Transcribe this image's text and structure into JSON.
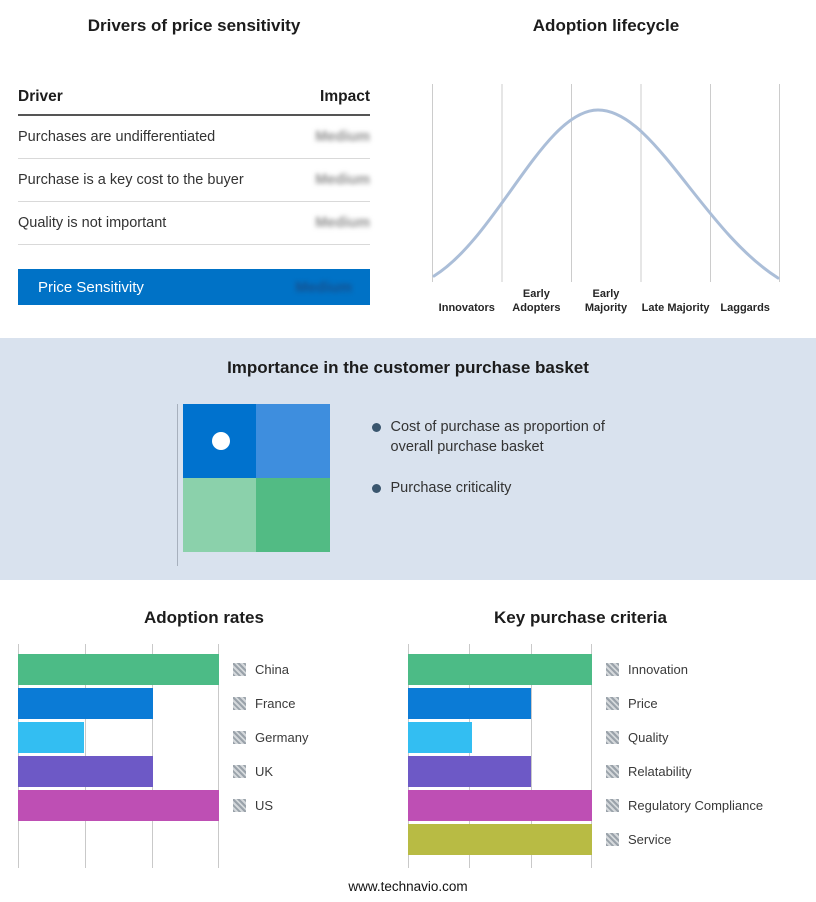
{
  "page": {
    "footer": "www.technavio.com"
  },
  "colors": {
    "accent_blue": "#0072C6",
    "section_background": "#D9E2EE",
    "curve_line": "#ABBED8"
  },
  "drivers_table": {
    "title": "Drivers of price sensitivity",
    "columns": {
      "driver": "Driver",
      "impact": "Impact"
    },
    "rows": [
      {
        "driver": "Purchases are undifferentiated",
        "impact": "Medium"
      },
      {
        "driver": "Purchase is a key cost to the buyer",
        "impact": "Medium"
      },
      {
        "driver": "Quality is not important",
        "impact": "Medium"
      }
    ],
    "summary": {
      "label": "Price Sensitivity",
      "impact": "Medium"
    }
  },
  "purchase_basket": {
    "title": "Importance in the customer purchase basket",
    "bullets": [
      "Cost of purchase as proportion of overall purchase basket",
      "Purchase criticality"
    ],
    "quadrants": [
      {
        "position": "top-left",
        "color": "#0072CE",
        "marker": true
      },
      {
        "position": "top-right",
        "color": "#3E8EDE",
        "marker": false
      },
      {
        "position": "bottom-left",
        "color": "#8BD1AB",
        "marker": false
      },
      {
        "position": "bottom-right",
        "color": "#52BB84",
        "marker": false
      }
    ]
  },
  "chart_data": [
    {
      "id": "adoption_lifecycle",
      "type": "line",
      "title": "Adoption lifecycle",
      "x": [
        "Innovators",
        "Early Adopters",
        "Early Majority",
        "Late Majority",
        "Laggards"
      ],
      "shape": "bell curve rising from Innovators, peaking at Early Majority, falling to Laggards",
      "line_color": "#ABBED8",
      "grid": "vertical",
      "legend_position": "none"
    },
    {
      "id": "adoption_rates",
      "type": "bar",
      "orientation": "horizontal",
      "title": "Adoption rates",
      "categories": [
        "China",
        "France",
        "Germany",
        "UK",
        "US"
      ],
      "values": [
        100,
        67,
        33,
        67,
        100
      ],
      "xlim": [
        0,
        100
      ],
      "colors": [
        "#4CBB86",
        "#0B7BD6",
        "#33BEF2",
        "#6D59C6",
        "#BE4FB4"
      ],
      "grid": "vertical",
      "legend_position": "right"
    },
    {
      "id": "key_purchase_criteria",
      "type": "bar",
      "orientation": "horizontal",
      "title": "Key purchase criteria",
      "categories": [
        "Innovation",
        "Price",
        "Quality",
        "Relatability",
        "Regulatory Compliance",
        "Service"
      ],
      "values": [
        100,
        67,
        35,
        67,
        100,
        100
      ],
      "xlim": [
        0,
        100
      ],
      "colors": [
        "#4CBB86",
        "#0B7BD6",
        "#33BEF2",
        "#6D59C6",
        "#BE4FB4",
        "#B8BB44"
      ],
      "grid": "vertical",
      "legend_position": "right"
    }
  ]
}
